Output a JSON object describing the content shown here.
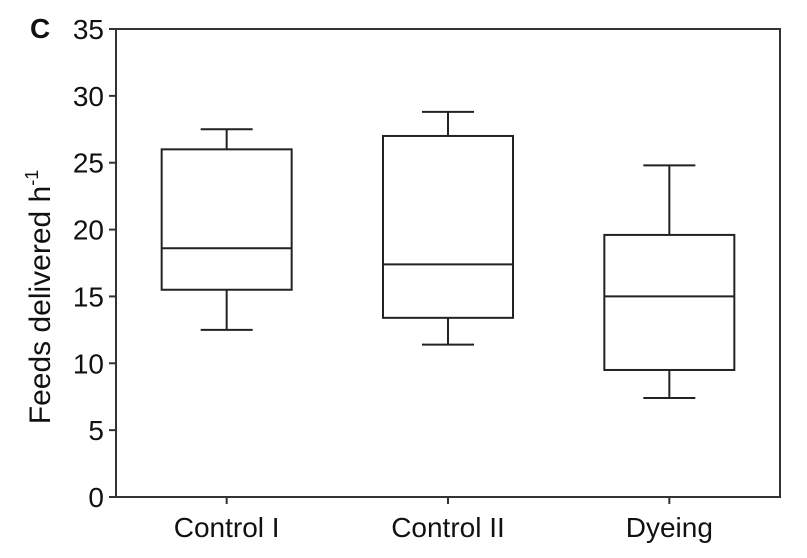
{
  "panel_label": "C",
  "chart_data": {
    "type": "box",
    "title": "",
    "xlabel": "",
    "ylabel": "Feeds delivered h",
    "ylabel_sup": "-1",
    "ylim": [
      0,
      35
    ],
    "yticks": [
      0,
      5,
      10,
      15,
      20,
      25,
      30,
      35
    ],
    "grid": false,
    "legend": "none",
    "categories": [
      "Control I",
      "Control II",
      "Dyeing"
    ],
    "boxes": [
      {
        "category": "Control I",
        "whisker_low": 12.5,
        "q1": 15.5,
        "median": 18.6,
        "q3": 26.0,
        "whisker_high": 27.5
      },
      {
        "category": "Control II",
        "whisker_low": 11.4,
        "q1": 13.4,
        "median": 17.4,
        "q3": 27.0,
        "whisker_high": 28.8
      },
      {
        "category": "Dyeing",
        "whisker_low": 7.4,
        "q1": 9.5,
        "median": 15.0,
        "q3": 19.6,
        "whisker_high": 24.8
      }
    ]
  }
}
